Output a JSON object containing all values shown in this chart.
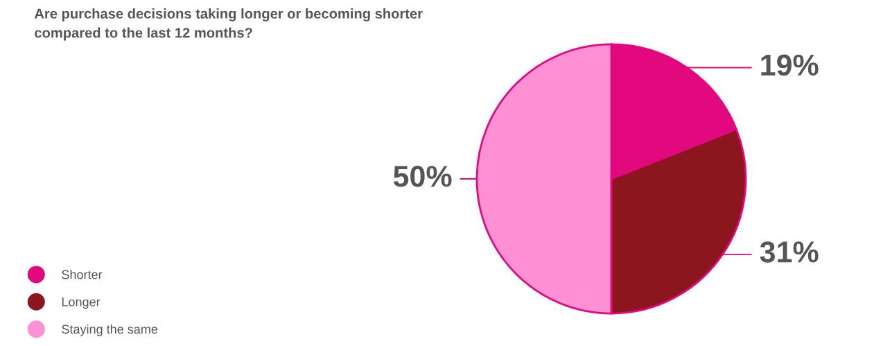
{
  "chart_data": {
    "type": "pie",
    "title": "Are purchase decisions taking longer or becoming shorter compared to the last 12 months?",
    "categories": [
      "Shorter",
      "Longer",
      "Staying the same"
    ],
    "values": [
      19,
      31,
      50
    ],
    "colors": [
      "#e2097f",
      "#8b161e",
      "#ff90d4"
    ],
    "value_labels": [
      "19%",
      "31%",
      "50%"
    ],
    "legend": "bottom left"
  }
}
